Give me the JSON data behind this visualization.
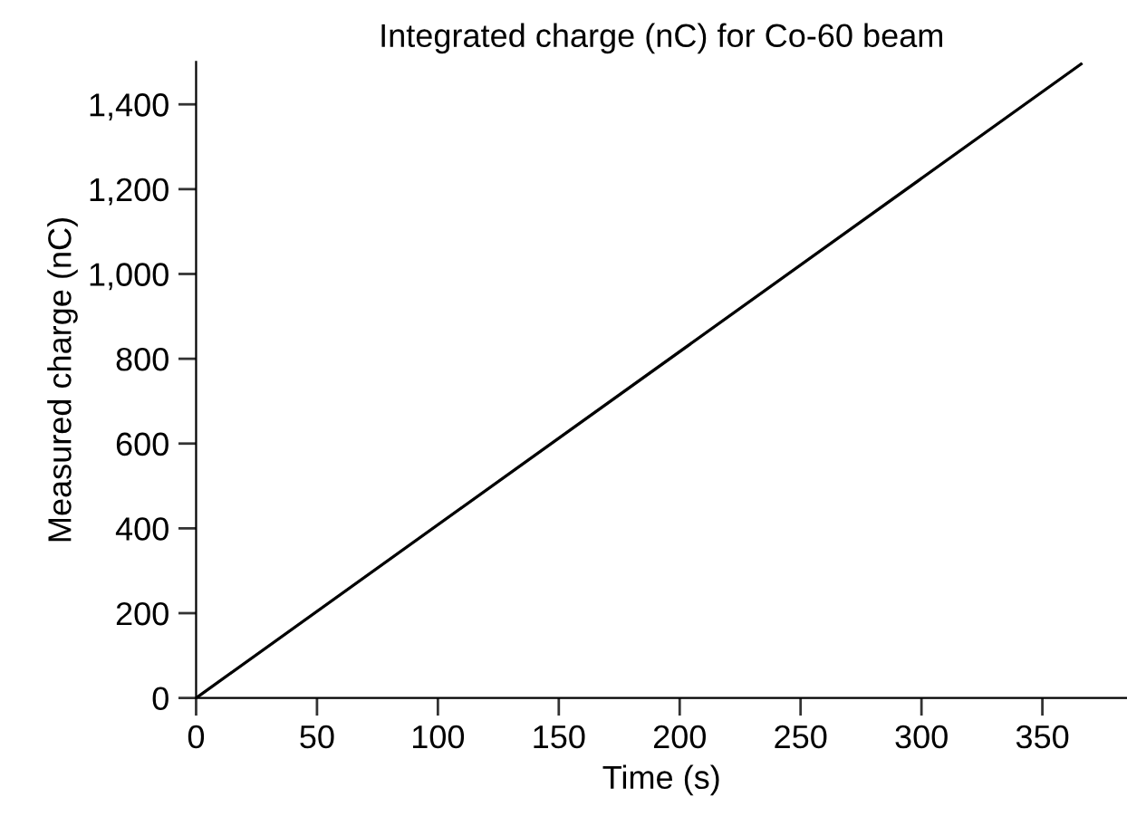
{
  "chart_data": {
    "type": "line",
    "title": "Integrated charge (nC) for Co-60 beam",
    "xlabel": "Time (s)",
    "ylabel": "Measured charge (nC)",
    "x": [
      0,
      366
    ],
    "series": [
      {
        "color": "#000000",
        "values": [
          0,
          1495
        ]
      }
    ],
    "xlim": [
      0,
      385
    ],
    "ylim": [
      0,
      1500
    ],
    "xticks": [
      0,
      50,
      100,
      150,
      200,
      250,
      300,
      350
    ],
    "yticks": [
      0,
      {
        "value": 200,
        "label": "200"
      },
      {
        "value": 400,
        "label": "400"
      },
      {
        "value": 600,
        "label": "600"
      },
      {
        "value": 800,
        "label": "800"
      },
      {
        "value": 1000,
        "label": "1,000"
      },
      {
        "value": 1200,
        "label": "1,200"
      },
      {
        "value": 1400,
        "label": "1,400"
      }
    ],
    "grid": false,
    "legend": false,
    "marker": "none",
    "line_style": "solid"
  }
}
